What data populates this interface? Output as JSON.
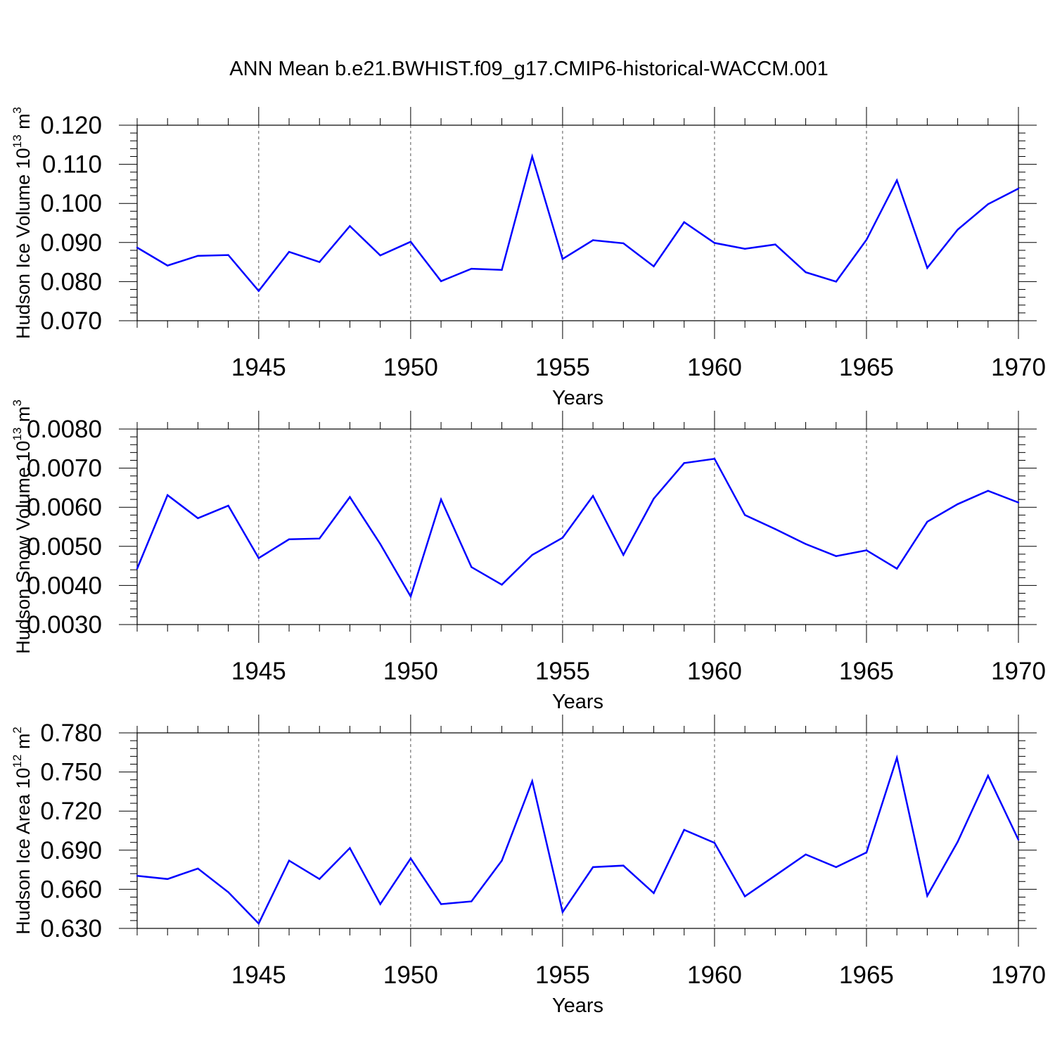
{
  "title": "ANN Mean b.e21.BWHIST.f09_g17.CMIP6-historical-WACCM.001",
  "colors": {
    "series": "#0000ff",
    "axis": "#000000",
    "grid": "#555555"
  },
  "chart_data": [
    {
      "type": "line",
      "ylabel": "Hudson Ice Volume",
      "ylabel_base": "10",
      "ylabel_exp": "13",
      "ylabel_unit": "m",
      "ylabel_unit_exp": "3",
      "xlabel": "Years",
      "xlim": [
        1941,
        1970
      ],
      "ylim": [
        0.07,
        0.12
      ],
      "yticks": [
        "0.070",
        "0.080",
        "0.090",
        "0.100",
        "0.110",
        "0.120"
      ],
      "xticks": [
        "1945",
        "1950",
        "1955",
        "1960",
        "1965",
        "1970"
      ],
      "x": [
        1941,
        1942,
        1943,
        1944,
        1945,
        1946,
        1947,
        1948,
        1949,
        1950,
        1951,
        1952,
        1953,
        1954,
        1955,
        1956,
        1957,
        1958,
        1959,
        1960,
        1961,
        1962,
        1963,
        1964,
        1965,
        1966,
        1967,
        1968,
        1969,
        1970
      ],
      "values": [
        0.0887,
        0.0841,
        0.0866,
        0.0868,
        0.0776,
        0.0876,
        0.085,
        0.0942,
        0.0867,
        0.0902,
        0.0801,
        0.0833,
        0.083,
        0.112,
        0.0858,
        0.0906,
        0.0898,
        0.0839,
        0.0952,
        0.0899,
        0.0884,
        0.0895,
        0.0824,
        0.08,
        0.0907,
        0.1059,
        0.0835,
        0.0933,
        0.0998,
        0.1038
      ]
    },
    {
      "type": "line",
      "ylabel": "Hudson Snow Volume",
      "ylabel_base": "10",
      "ylabel_exp": "13",
      "ylabel_unit": "m",
      "ylabel_unit_exp": "3",
      "xlabel": "Years",
      "xlim": [
        1941,
        1970
      ],
      "ylim": [
        0.003,
        0.008
      ],
      "yticks": [
        "0.0030",
        "0.0040",
        "0.0050",
        "0.0060",
        "0.0070",
        "0.0080"
      ],
      "xticks": [
        "1945",
        "1950",
        "1955",
        "1960",
        "1965",
        "1970"
      ],
      "x": [
        1941,
        1942,
        1943,
        1944,
        1945,
        1946,
        1947,
        1948,
        1949,
        1950,
        1951,
        1952,
        1953,
        1954,
        1955,
        1956,
        1957,
        1958,
        1959,
        1960,
        1961,
        1962,
        1963,
        1964,
        1965,
        1966,
        1967,
        1968,
        1969,
        1970
      ],
      "values": [
        0.00443,
        0.00631,
        0.00572,
        0.00604,
        0.0047,
        0.00518,
        0.0052,
        0.00626,
        0.00506,
        0.00372,
        0.0062,
        0.00447,
        0.00402,
        0.00478,
        0.00522,
        0.00629,
        0.00478,
        0.00622,
        0.00713,
        0.00724,
        0.0058,
        0.00544,
        0.00506,
        0.00475,
        0.0049,
        0.00443,
        0.00563,
        0.00608,
        0.00642,
        0.00612
      ]
    },
    {
      "type": "line",
      "ylabel": "Hudson Ice Area",
      "ylabel_base": "10",
      "ylabel_exp": "12",
      "ylabel_unit": "m",
      "ylabel_unit_exp": "2",
      "xlabel": "Years",
      "xlim": [
        1941,
        1970
      ],
      "ylim": [
        0.63,
        0.78
      ],
      "yticks": [
        "0.630",
        "0.660",
        "0.690",
        "0.720",
        "0.750",
        "0.780"
      ],
      "xticks": [
        "1945",
        "1950",
        "1955",
        "1960",
        "1965",
        "1970"
      ],
      "x": [
        1941,
        1942,
        1943,
        1944,
        1945,
        1946,
        1947,
        1948,
        1949,
        1950,
        1951,
        1952,
        1953,
        1954,
        1955,
        1956,
        1957,
        1958,
        1959,
        1960,
        1961,
        1962,
        1963,
        1964,
        1965,
        1966,
        1967,
        1968,
        1969,
        1970
      ],
      "values": [
        0.6703,
        0.6679,
        0.6759,
        0.6578,
        0.6337,
        0.682,
        0.6679,
        0.6916,
        0.6486,
        0.6837,
        0.6486,
        0.6507,
        0.682,
        0.743,
        0.6425,
        0.677,
        0.6782,
        0.6571,
        0.7056,
        0.6956,
        0.6546,
        0.6706,
        0.6867,
        0.677,
        0.6883,
        0.7609,
        0.655,
        0.6964,
        0.7471,
        0.698
      ]
    }
  ]
}
